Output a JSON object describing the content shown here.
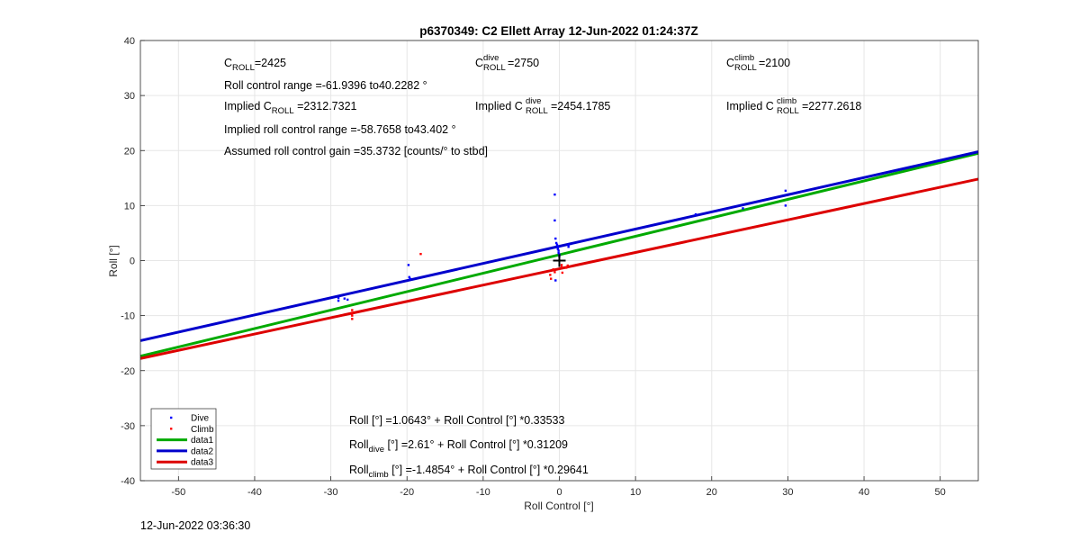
{
  "chart_data": {
    "type": "scatter",
    "title": "p6370349: C2 Ellett Array 12-Jun-2022 01:24:37Z",
    "xlabel": "Roll Control [°]",
    "ylabel": "Roll [°]",
    "xlim": [
      -55,
      55
    ],
    "ylim": [
      -40,
      40
    ],
    "xticks": [
      -50,
      -40,
      -30,
      -20,
      -10,
      0,
      10,
      20,
      30,
      40,
      50
    ],
    "yticks": [
      -40,
      -30,
      -20,
      -10,
      0,
      10,
      20,
      30,
      40
    ],
    "grid": true,
    "legend_position": "bottom-left",
    "series": [
      {
        "name": "Dive",
        "kind": "points",
        "color": "#0000ff",
        "points": [
          [
            -29,
            -7.3
          ],
          [
            -29,
            -6.8
          ],
          [
            -28.2,
            -6.9
          ],
          [
            -27.8,
            -7.1
          ],
          [
            -19.8,
            -0.8
          ],
          [
            -19.7,
            -3.0
          ],
          [
            -19.6,
            -3.3
          ],
          [
            -0.6,
            12.0
          ],
          [
            -0.6,
            7.3
          ],
          [
            -0.5,
            4.0
          ],
          [
            -0.4,
            3.2
          ],
          [
            -0.3,
            2.9
          ],
          [
            -0.2,
            2.5
          ],
          [
            -0.2,
            2.1
          ],
          [
            -0.1,
            1.8
          ],
          [
            -0.1,
            1.4
          ],
          [
            0,
            1.1
          ],
          [
            0,
            0.8
          ],
          [
            -0.5,
            -3.6
          ],
          [
            1.2,
            2.9
          ],
          [
            1.2,
            2.5
          ],
          [
            17.9,
            8.4
          ],
          [
            24.1,
            9.5
          ],
          [
            29.7,
            12.7
          ],
          [
            29.7,
            10.0
          ]
        ]
      },
      {
        "name": "Climb",
        "kind": "points",
        "color": "#ff0000",
        "points": [
          [
            -18.2,
            1.2
          ],
          [
            -27.2,
            -9.0
          ],
          [
            -27.2,
            -9.5
          ],
          [
            -27.2,
            -10.0
          ],
          [
            -27.2,
            -10.6
          ],
          [
            -1.2,
            -2.6
          ],
          [
            -1.1,
            -3.3
          ],
          [
            -0.8,
            -1.6
          ],
          [
            -0.6,
            -2.1
          ],
          [
            0.3,
            -0.8
          ],
          [
            0.3,
            -1.2
          ],
          [
            0.4,
            -2.2
          ],
          [
            0.9,
            -1.3
          ],
          [
            1.1,
            -0.9
          ]
        ]
      },
      {
        "name": "data1",
        "kind": "line",
        "color": "#00aa00",
        "intercept": 1.0643,
        "slope": 0.33533
      },
      {
        "name": "data2",
        "kind": "line",
        "color": "#0000cc",
        "intercept": 2.61,
        "slope": 0.31209
      },
      {
        "name": "data3",
        "kind": "line",
        "color": "#dd0000",
        "intercept": -1.4854,
        "slope": 0.29641
      }
    ],
    "marker": {
      "x": 0,
      "y": 0,
      "symbol": "+"
    },
    "annotations": {
      "c_roll": {
        "main": "C",
        "sub": "ROLL",
        "rest": "=2425"
      },
      "roll_range": "Roll control range =-61.9396 to40.2282 °",
      "implied_c_roll": {
        "pre": "Implied C",
        "sub": "ROLL",
        "rest": " =2312.7321"
      },
      "implied_range": "Implied roll control range =-58.7658 to43.402 °",
      "assumed_gain": "Assumed roll control gain =35.3732 [counts/° to stbd]",
      "c_dive": {
        "main": "C",
        "sub": "ROLL",
        "sup": "dive",
        "rest": " =2750"
      },
      "implied_c_dive": {
        "pre": "Implied C",
        "sub": "ROLL",
        "sup": "dive",
        "rest": " =2454.1785"
      },
      "c_climb": {
        "main": "C",
        "sub": "ROLL",
        "sup": "climb",
        "rest": " =2100"
      },
      "implied_c_climb": {
        "pre": "Implied C",
        "sub": "ROLL",
        "sup": "climb",
        "rest": " =2277.2618"
      },
      "eq_all": "Roll [°] =1.0643° + Roll Control [°] *0.33533",
      "eq_dive": {
        "pre": "Roll",
        "sub": "dive",
        "rest": " [°] =2.61° + Roll Control [°] *0.31209"
      },
      "eq_climb": {
        "pre": "Roll",
        "sub": "climb",
        "rest": " [°] =-1.4854° + Roll Control [°] *0.29641"
      }
    }
  },
  "footer_timestamp": "12-Jun-2022 03:36:30"
}
